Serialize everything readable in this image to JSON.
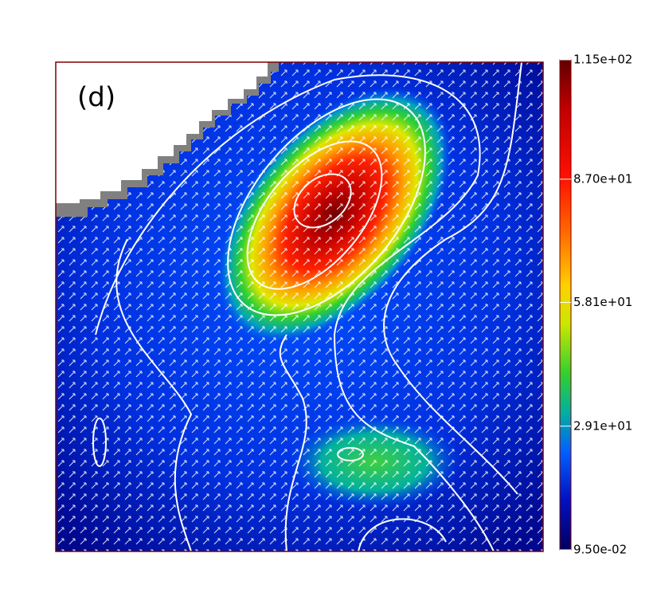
{
  "chart_data": {
    "type": "heatmap",
    "annotation": "(d)",
    "colorbar": {
      "lim": [
        0.095,
        115
      ],
      "ticks": [
        {
          "value": 115,
          "label": "1.15e+02"
        },
        {
          "value": 87.0,
          "label": "8.70e+01"
        },
        {
          "value": 58.1,
          "label": "5.81e+01"
        },
        {
          "value": 29.1,
          "label": "2.91e+01"
        },
        {
          "value": 0.095,
          "label": "9.50e-02"
        }
      ]
    }
  }
}
